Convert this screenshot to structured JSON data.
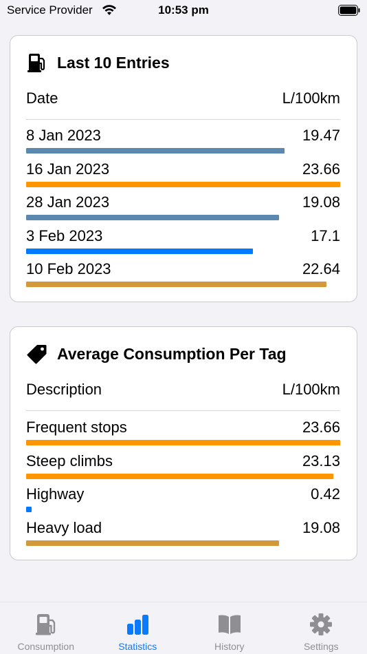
{
  "status_bar": {
    "carrier": "Service Provider",
    "time": "10:53 pm"
  },
  "last_entries": {
    "title": "Last 10 Entries",
    "icon": "fuel-pump-icon",
    "column_left": "Date",
    "column_right": "L/100km",
    "rows": [
      {
        "label": "8 Jan 2023",
        "value": "19.47",
        "fraction": 0.823,
        "color": "#5a88ae"
      },
      {
        "label": "16 Jan 2023",
        "value": "23.66",
        "fraction": 1.0,
        "color": "#ff9500"
      },
      {
        "label": "28 Jan 2023",
        "value": "19.08",
        "fraction": 0.806,
        "color": "#5a88ae"
      },
      {
        "label": "3 Feb 2023",
        "value": "17.1",
        "fraction": 0.723,
        "color": "#007aff"
      },
      {
        "label": "10 Feb 2023",
        "value": "22.64",
        "fraction": 0.957,
        "color": "#d3983a"
      }
    ]
  },
  "tag_averages": {
    "title": "Average Consumption Per Tag",
    "icon": "tag-icon",
    "column_left": "Description",
    "column_right": "L/100km",
    "rows": [
      {
        "label": "Frequent stops",
        "value": "23.66",
        "fraction": 1.0,
        "color": "#ff9500"
      },
      {
        "label": "Steep climbs",
        "value": "23.13",
        "fraction": 0.978,
        "color": "#ff9500"
      },
      {
        "label": "Highway",
        "value": "0.42",
        "fraction": 0.018,
        "color": "#007aff"
      },
      {
        "label": "Heavy load",
        "value": "19.08",
        "fraction": 0.806,
        "color": "#d3983a"
      }
    ]
  },
  "tabs": [
    {
      "label": "Consumption",
      "icon": "fuel-pump-icon",
      "active": false
    },
    {
      "label": "Statistics",
      "icon": "bar-chart-icon",
      "active": true
    },
    {
      "label": "History",
      "icon": "book-icon",
      "active": false
    },
    {
      "label": "Settings",
      "icon": "gear-icon",
      "active": false
    }
  ],
  "colors": {
    "accent": "#0a7aff",
    "inactive": "#8e8e93"
  }
}
